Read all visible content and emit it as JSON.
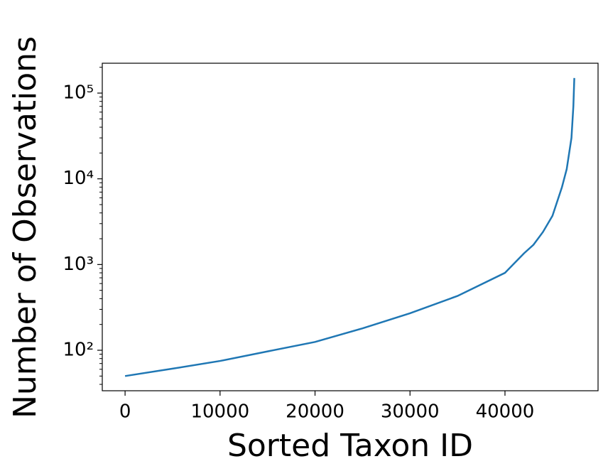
{
  "chart_data": {
    "type": "line",
    "x_label": "Sorted Taxon ID",
    "y_label": "Number of Observations",
    "x": [
      0,
      5000,
      10000,
      15000,
      20000,
      25000,
      30000,
      35000,
      40000,
      42000,
      43000,
      44000,
      45000,
      46000,
      46500,
      47000,
      47200,
      47300
    ],
    "series": [
      {
        "name": "observations",
        "color": "#1f77b4",
        "values": [
          50,
          61,
          75,
          97,
          125,
          180,
          270,
          430,
          800,
          1350,
          1700,
          2400,
          3700,
          8000,
          13000,
          30000,
          70000,
          150000
        ]
      }
    ],
    "log_y": true,
    "xlim": [
      -2400,
      49800
    ],
    "xticks": [
      0,
      10000,
      20000,
      30000,
      40000
    ],
    "ylim": [
      33.7,
      223000
    ],
    "yticks": [
      {
        "value": 100,
        "label": "10²"
      },
      {
        "value": 1000,
        "label": "10³"
      },
      {
        "value": 10000,
        "label": "10⁴"
      },
      {
        "value": 100000,
        "label": "10⁵"
      }
    ]
  }
}
